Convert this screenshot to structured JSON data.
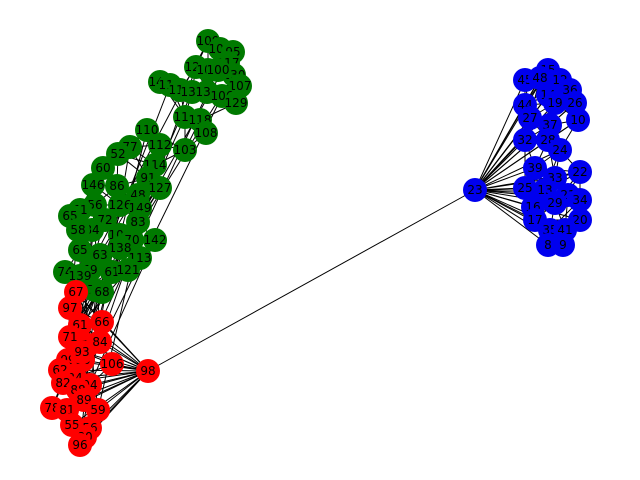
{
  "graph": {
    "colors": {
      "green": "#007a00",
      "red": "#ff0000",
      "blue": "#0000ee",
      "edge": "#000000"
    },
    "hubs": [
      {
        "label": "98",
        "group": "red"
      },
      {
        "label": "23",
        "group": "blue"
      }
    ],
    "groups": {
      "green": [
        "109",
        "105",
        "95",
        "117",
        "130",
        "107",
        "124",
        "101",
        "100",
        "147",
        "111",
        "113",
        "136",
        "134",
        "106",
        "129",
        "116",
        "118",
        "110",
        "108",
        "112",
        "103",
        "77",
        "52",
        "114",
        "91",
        "60",
        "86",
        "127",
        "48",
        "146",
        "56",
        "126",
        "149",
        "72",
        "83",
        "51",
        "65",
        "84",
        "58",
        "102",
        "70",
        "142",
        "138",
        "65b",
        "113b",
        "63",
        "59",
        "61",
        "74",
        "121",
        "139",
        "76",
        "68"
      ],
      "red": [
        "67",
        "97",
        "61b",
        "66",
        "71",
        "58b",
        "84b",
        "99",
        "90",
        "106",
        "62",
        "34",
        "82",
        "94",
        "88",
        "89",
        "78",
        "81",
        "55",
        "56b",
        "59b",
        "80",
        "96",
        "93"
      ],
      "blue": [
        "15",
        "45",
        "48b",
        "12",
        "36",
        "14",
        "44",
        "19",
        "26",
        "27",
        "37",
        "10",
        "32",
        "28",
        "24",
        "22",
        "39",
        "33",
        "25",
        "13",
        "21",
        "34b",
        "16",
        "29",
        "20",
        "17",
        "35",
        "41",
        "8",
        "9"
      ]
    }
  }
}
